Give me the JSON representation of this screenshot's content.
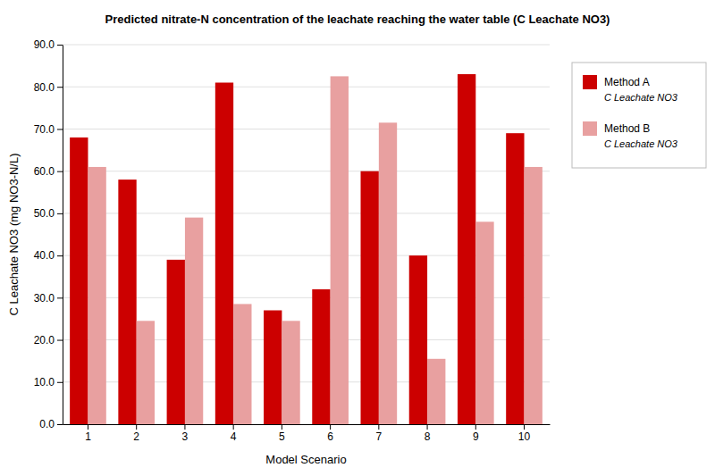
{
  "chart_data": {
    "type": "bar",
    "title": "Predicted nitrate-N concentration of the leachate reaching the water table (C Leachate NO3)",
    "x_label": "Model Scenario",
    "y_label": "C Leachate NO3 (mg NO3-N/L)",
    "categories": [
      "1",
      "2",
      "3",
      "4",
      "5",
      "6",
      "7",
      "8",
      "9",
      "10"
    ],
    "series": [
      {
        "name": "Method A\nC Leachate NO3",
        "color": "#CC0000",
        "values": [
          68,
          58,
          39,
          81,
          27,
          32,
          60,
          40,
          83,
          69
        ]
      },
      {
        "name": "Method B\nC Leachate NO3",
        "color": "#E8A0A0",
        "values": [
          61,
          24.5,
          49,
          28.5,
          24.5,
          82.5,
          71.5,
          15.5,
          48,
          61
        ]
      }
    ],
    "ylim": [
      0,
      90
    ],
    "yticks": [
      {
        "value": 0,
        "label": "0.0"
      },
      {
        "value": 10,
        "label": "10.0"
      },
      {
        "value": 20,
        "label": "20.0"
      },
      {
        "value": 30,
        "label": "30.0"
      },
      {
        "value": 40,
        "label": "40.0"
      },
      {
        "value": 50,
        "label": "50.0"
      },
      {
        "value": 60,
        "label": "60.0"
      },
      {
        "value": 70,
        "label": "70.0"
      },
      {
        "value": 80,
        "label": "80.0"
      },
      {
        "value": 90,
        "label": "90.0"
      }
    ],
    "grid": true,
    "legend": "right"
  }
}
